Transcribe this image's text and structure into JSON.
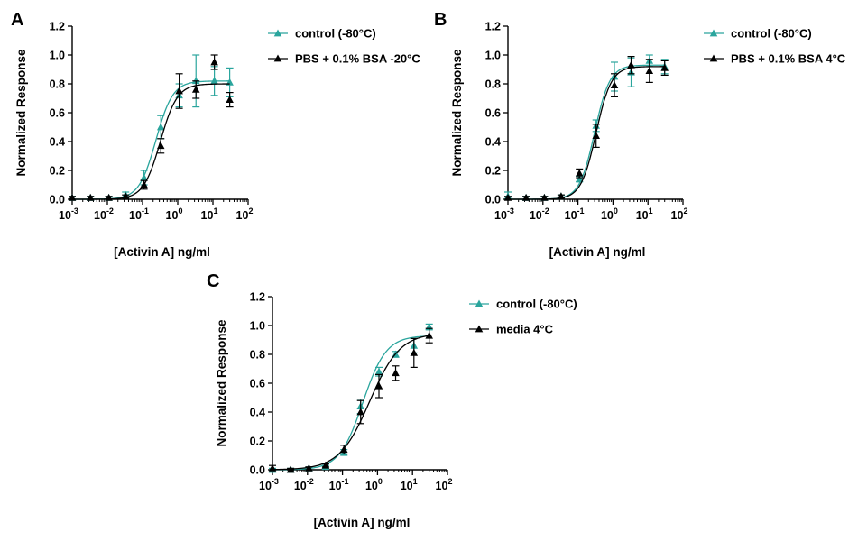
{
  "colors": {
    "control": "#2aa59d",
    "treated": "#000000"
  },
  "chart_data": [
    {
      "type": "scatter",
      "panel": "A",
      "xlabel": "[Activin A] ng/ml",
      "ylabel": "Normalized Response",
      "xscale": "log",
      "xlim_log10": [
        -3,
        2
      ],
      "ylim": [
        0,
        1.2
      ],
      "yticks": [
        "0.0",
        "0.2",
        "0.4",
        "0.6",
        "0.8",
        "1.0",
        "1.2"
      ],
      "xticks": [
        {
          "base": "10",
          "exp": "-3"
        },
        {
          "base": "10",
          "exp": "-2"
        },
        {
          "base": "10",
          "exp": "-1"
        },
        {
          "base": "10",
          "exp": "0"
        },
        {
          "base": "10",
          "exp": "1"
        },
        {
          "base": "10",
          "exp": "2"
        }
      ],
      "legend_position": "right",
      "series": [
        {
          "name": "control (-80°C)",
          "color": "#2aa59d",
          "fit": {
            "bottom": 0.0,
            "top": 0.82,
            "ec50": 0.24,
            "hill": 1.8
          },
          "points": [
            {
              "x": 0.001,
              "y": 0.01,
              "err": 0.01
            },
            {
              "x": 0.0033,
              "y": 0.01,
              "err": 0.01
            },
            {
              "x": 0.011,
              "y": 0.01,
              "err": 0.01
            },
            {
              "x": 0.033,
              "y": 0.03,
              "err": 0.02
            },
            {
              "x": 0.11,
              "y": 0.15,
              "err": 0.05
            },
            {
              "x": 0.33,
              "y": 0.5,
              "err": 0.08
            },
            {
              "x": 1.1,
              "y": 0.72,
              "err": 0.08
            },
            {
              "x": 3.3,
              "y": 0.82,
              "err": 0.18
            },
            {
              "x": 11,
              "y": 0.82,
              "err": 0.1
            },
            {
              "x": 30,
              "y": 0.81,
              "err": 0.1
            }
          ]
        },
        {
          "name": "PBS + 0.1% BSA -20°C",
          "color": "#000000",
          "fit": {
            "bottom": 0.0,
            "top": 0.8,
            "ec50": 0.32,
            "hill": 1.8
          },
          "points": [
            {
              "x": 0.001,
              "y": 0.01,
              "err": 0.01
            },
            {
              "x": 0.0033,
              "y": 0.01,
              "err": 0.01
            },
            {
              "x": 0.011,
              "y": 0.01,
              "err": 0.01
            },
            {
              "x": 0.033,
              "y": 0.02,
              "err": 0.01
            },
            {
              "x": 0.11,
              "y": 0.1,
              "err": 0.03
            },
            {
              "x": 0.33,
              "y": 0.37,
              "err": 0.05
            },
            {
              "x": 1.1,
              "y": 0.75,
              "err": 0.12
            },
            {
              "x": 3.3,
              "y": 0.76,
              "err": 0.06
            },
            {
              "x": 11,
              "y": 0.95,
              "err": 0.05
            },
            {
              "x": 30,
              "y": 0.69,
              "err": 0.05
            }
          ]
        }
      ]
    },
    {
      "type": "scatter",
      "panel": "B",
      "xlabel": "[Activin A] ng/ml",
      "ylabel": "Normalized Response",
      "xscale": "log",
      "xlim_log10": [
        -3,
        2
      ],
      "ylim": [
        0,
        1.2
      ],
      "yticks": [
        "0.0",
        "0.2",
        "0.4",
        "0.6",
        "0.8",
        "1.0",
        "1.2"
      ],
      "xticks": [
        {
          "base": "10",
          "exp": "-3"
        },
        {
          "base": "10",
          "exp": "-2"
        },
        {
          "base": "10",
          "exp": "-1"
        },
        {
          "base": "10",
          "exp": "0"
        },
        {
          "base": "10",
          "exp": "1"
        },
        {
          "base": "10",
          "exp": "2"
        }
      ],
      "legend_position": "right",
      "series": [
        {
          "name": "control (-80°C)",
          "color": "#2aa59d",
          "fit": {
            "bottom": 0.0,
            "top": 0.93,
            "ec50": 0.3,
            "hill": 2.0
          },
          "points": [
            {
              "x": 0.001,
              "y": 0.02,
              "err": 0.03
            },
            {
              "x": 0.0033,
              "y": 0.01,
              "err": 0.01
            },
            {
              "x": 0.011,
              "y": 0.01,
              "err": 0.01
            },
            {
              "x": 0.033,
              "y": 0.02,
              "err": 0.01
            },
            {
              "x": 0.11,
              "y": 0.14,
              "err": 0.02
            },
            {
              "x": 0.33,
              "y": 0.51,
              "err": 0.04
            },
            {
              "x": 1.1,
              "y": 0.85,
              "err": 0.1
            },
            {
              "x": 3.3,
              "y": 0.88,
              "err": 0.1
            },
            {
              "x": 11,
              "y": 0.96,
              "err": 0.04
            },
            {
              "x": 30,
              "y": 0.92,
              "err": 0.05
            }
          ]
        },
        {
          "name": "PBS + 0.1% BSA 4°C",
          "color": "#000000",
          "fit": {
            "bottom": 0.0,
            "top": 0.92,
            "ec50": 0.33,
            "hill": 2.0
          },
          "points": [
            {
              "x": 0.001,
              "y": 0.01,
              "err": 0.01
            },
            {
              "x": 0.0033,
              "y": 0.01,
              "err": 0.01
            },
            {
              "x": 0.011,
              "y": 0.01,
              "err": 0.01
            },
            {
              "x": 0.033,
              "y": 0.02,
              "err": 0.01
            },
            {
              "x": 0.11,
              "y": 0.18,
              "err": 0.03
            },
            {
              "x": 0.33,
              "y": 0.44,
              "err": 0.08
            },
            {
              "x": 1.1,
              "y": 0.79,
              "err": 0.08
            },
            {
              "x": 3.3,
              "y": 0.93,
              "err": 0.06
            },
            {
              "x": 11,
              "y": 0.89,
              "err": 0.08
            },
            {
              "x": 30,
              "y": 0.91,
              "err": 0.05
            }
          ]
        }
      ]
    },
    {
      "type": "scatter",
      "panel": "C",
      "xlabel": "[Activin A] ng/ml",
      "ylabel": "Normalized Response",
      "xscale": "log",
      "xlim_log10": [
        -3,
        2
      ],
      "ylim": [
        0,
        1.2
      ],
      "yticks": [
        "0.0",
        "0.2",
        "0.4",
        "0.6",
        "0.8",
        "1.0",
        "1.2"
      ],
      "xticks": [
        {
          "base": "10",
          "exp": "-3"
        },
        {
          "base": "10",
          "exp": "-2"
        },
        {
          "base": "10",
          "exp": "-1"
        },
        {
          "base": "10",
          "exp": "0"
        },
        {
          "base": "10",
          "exp": "1"
        },
        {
          "base": "10",
          "exp": "2"
        }
      ],
      "legend_position": "right",
      "series": [
        {
          "name": "control (-80°C)",
          "color": "#2aa59d",
          "fit": {
            "bottom": 0.0,
            "top": 0.93,
            "ec50": 0.38,
            "hill": 1.3
          },
          "points": [
            {
              "x": 0.001,
              "y": 0.0,
              "err": 0.01
            },
            {
              "x": 0.0033,
              "y": 0.0,
              "err": 0.01
            },
            {
              "x": 0.011,
              "y": 0.01,
              "err": 0.01
            },
            {
              "x": 0.033,
              "y": 0.02,
              "err": 0.01
            },
            {
              "x": 0.11,
              "y": 0.12,
              "err": 0.02
            },
            {
              "x": 0.33,
              "y": 0.44,
              "err": 0.05
            },
            {
              "x": 1.1,
              "y": 0.68,
              "err": 0.03
            },
            {
              "x": 3.3,
              "y": 0.8,
              "err": 0.02
            },
            {
              "x": 11,
              "y": 0.86,
              "err": 0.05
            },
            {
              "x": 30,
              "y": 0.99,
              "err": 0.02
            }
          ]
        },
        {
          "name": "media 4°C",
          "color": "#000000",
          "fit": {
            "bottom": 0.0,
            "top": 0.95,
            "ec50": 0.6,
            "hill": 1.0
          },
          "points": [
            {
              "x": 0.001,
              "y": 0.01,
              "err": 0.02
            },
            {
              "x": 0.0033,
              "y": 0.0,
              "err": 0.01
            },
            {
              "x": 0.011,
              "y": 0.01,
              "err": 0.01
            },
            {
              "x": 0.033,
              "y": 0.03,
              "err": 0.01
            },
            {
              "x": 0.11,
              "y": 0.14,
              "err": 0.03
            },
            {
              "x": 0.33,
              "y": 0.4,
              "err": 0.08
            },
            {
              "x": 1.1,
              "y": 0.58,
              "err": 0.08
            },
            {
              "x": 3.3,
              "y": 0.67,
              "err": 0.05
            },
            {
              "x": 11,
              "y": 0.81,
              "err": 0.1
            },
            {
              "x": 30,
              "y": 0.93,
              "err": 0.05
            }
          ]
        }
      ]
    }
  ]
}
